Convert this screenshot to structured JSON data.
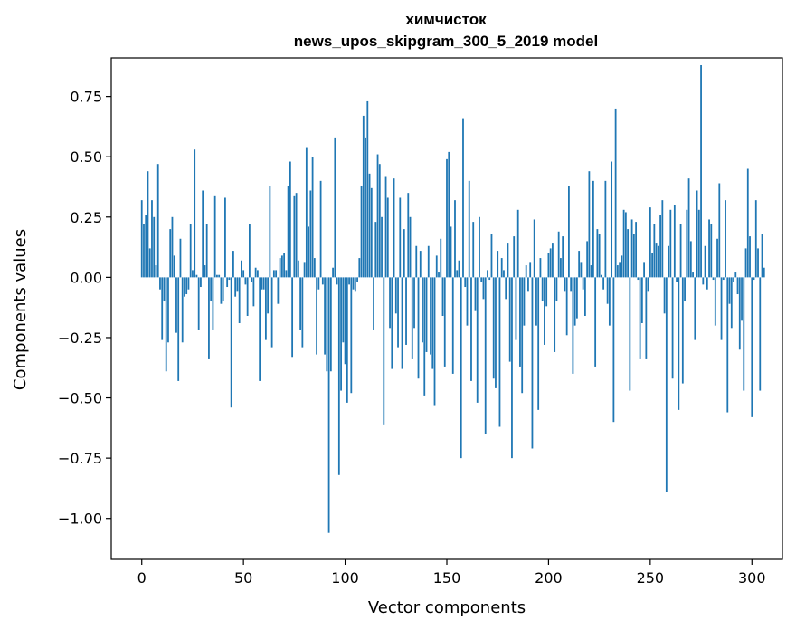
{
  "chart_data": {
    "type": "bar",
    "title": "химчисток",
    "subtitle": "news_upos_skipgram_300_5_2019 model",
    "xlabel": "Vector components",
    "ylabel": "Components values",
    "xlim": [
      -15,
      315
    ],
    "ylim": [
      -1.17,
      0.91
    ],
    "xticks": [
      0,
      50,
      100,
      150,
      200,
      250,
      300
    ],
    "yticks": [
      -1.0,
      -0.75,
      -0.5,
      -0.25,
      0.0,
      0.25,
      0.5,
      0.75
    ],
    "ytick_labels": [
      "−1.00",
      "−0.75",
      "−0.50",
      "−0.25",
      "0.00",
      "0.25",
      "0.50",
      "0.75"
    ],
    "xtick_labels": [
      "0",
      "50",
      "100",
      "150",
      "200",
      "250",
      "300"
    ],
    "bar_color": "#1f77b4",
    "values": [
      0.32,
      0.22,
      0.26,
      0.44,
      0.12,
      0.32,
      0.25,
      0.05,
      0.47,
      -0.05,
      -0.26,
      -0.1,
      -0.39,
      -0.27,
      0.2,
      0.25,
      0.09,
      -0.23,
      -0.43,
      0.16,
      -0.27,
      -0.08,
      -0.07,
      -0.05,
      0.22,
      0.03,
      0.53,
      0.01,
      -0.22,
      -0.04,
      0.36,
      0.05,
      0.22,
      -0.34,
      -0.1,
      -0.22,
      0.34,
      0.01,
      0.01,
      -0.11,
      -0.1,
      0.33,
      -0.04,
      -0.01,
      -0.54,
      0.11,
      -0.08,
      -0.06,
      -0.19,
      0.07,
      0.03,
      -0.03,
      -0.16,
      0.22,
      -0.02,
      -0.12,
      0.04,
      0.03,
      -0.43,
      -0.05,
      -0.05,
      -0.26,
      -0.15,
      0.38,
      -0.29,
      0.03,
      0.03,
      -0.11,
      0.08,
      0.09,
      0.1,
      0.03,
      0.38,
      0.48,
      -0.33,
      0.34,
      0.35,
      0.07,
      -0.22,
      -0.29,
      0.06,
      0.54,
      0.21,
      0.36,
      0.5,
      0.08,
      -0.32,
      -0.05,
      0.4,
      -0.03,
      -0.32,
      -0.39,
      -1.06,
      -0.39,
      0.04,
      0.58,
      -0.03,
      -0.82,
      -0.47,
      -0.27,
      -0.36,
      -0.52,
      -0.03,
      -0.48,
      -0.05,
      -0.06,
      -0.02,
      0.08,
      0.38,
      0.67,
      0.58,
      0.73,
      0.43,
      0.37,
      -0.22,
      0.23,
      0.51,
      0.47,
      0.25,
      -0.61,
      0.42,
      0.33,
      -0.21,
      -0.38,
      0.41,
      -0.15,
      -0.29,
      0.33,
      -0.38,
      0.2,
      -0.28,
      0.35,
      0.25,
      -0.34,
      -0.21,
      0.13,
      -0.42,
      0.11,
      -0.27,
      -0.49,
      -0.31,
      0.13,
      -0.32,
      -0.38,
      -0.53,
      0.09,
      0.02,
      0.16,
      -0.16,
      -0.37,
      0.49,
      0.52,
      0.21,
      -0.4,
      0.32,
      0.03,
      0.07,
      -0.75,
      0.66,
      -0.04,
      -0.2,
      0.4,
      -0.43,
      0.23,
      -0.14,
      -0.52,
      0.25,
      -0.02,
      -0.09,
      -0.65,
      0.03,
      -0.01,
      0.18,
      -0.42,
      -0.46,
      0.11,
      -0.62,
      0.08,
      0.03,
      -0.09,
      0.14,
      -0.35,
      -0.75,
      0.17,
      -0.26,
      0.28,
      -0.37,
      -0.48,
      -0.2,
      0.05,
      -0.06,
      0.06,
      -0.71,
      0.24,
      -0.2,
      -0.55,
      0.08,
      -0.1,
      -0.28,
      -0.12,
      0.1,
      0.12,
      0.14,
      -0.31,
      -0.1,
      0.19,
      0.08,
      0.17,
      -0.06,
      -0.24,
      0.38,
      -0.06,
      -0.4,
      -0.2,
      -0.17,
      0.11,
      0.06,
      -0.05,
      -0.16,
      0.15,
      0.44,
      0.05,
      0.4,
      -0.37,
      0.2,
      0.18,
      0.01,
      -0.05,
      0.4,
      -0.11,
      -0.2,
      0.48,
      -0.6,
      0.7,
      0.05,
      0.06,
      0.09,
      0.28,
      0.27,
      0.2,
      -0.47,
      0.24,
      0.18,
      0.23,
      -0.01,
      -0.34,
      -0.19,
      0.06,
      -0.34,
      -0.06,
      0.29,
      0.1,
      0.22,
      0.14,
      0.13,
      0.26,
      0.32,
      -0.15,
      -0.89,
      0.13,
      0.28,
      -0.42,
      0.3,
      -0.02,
      -0.55,
      0.22,
      -0.44,
      -0.1,
      0.28,
      0.41,
      0.15,
      0.02,
      -0.26,
      0.36,
      0.28,
      0.88,
      -0.03,
      0.13,
      -0.05,
      0.24,
      0.22,
      -0.01,
      -0.2,
      0.16,
      0.39,
      -0.26,
      -0.01,
      0.32,
      -0.56,
      -0.11,
      -0.21,
      -0.02,
      0.02,
      -0.07,
      -0.3,
      -0.18,
      -0.47,
      0.12,
      0.45,
      0.17,
      -0.58,
      -0.01,
      0.32,
      0.12,
      -0.47,
      0.18,
      0.04
    ]
  }
}
